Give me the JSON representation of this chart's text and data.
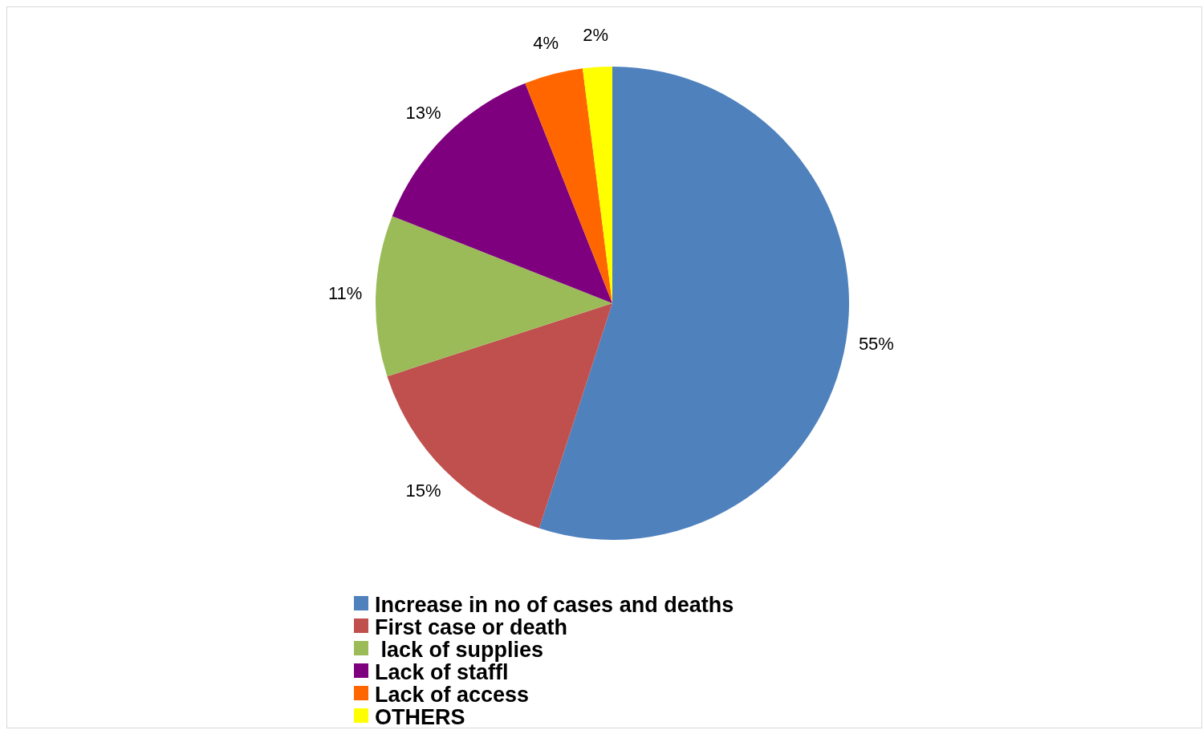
{
  "chart_data": {
    "type": "pie",
    "categories": [
      "Increase in no of cases and deaths",
      "First case or death",
      " lack of supplies",
      "Lack of staffl",
      "Lack of access",
      "OTHERS"
    ],
    "values": [
      55,
      15,
      11,
      13,
      4,
      2
    ],
    "colors": [
      "#4f81bd",
      "#c0504d",
      "#9bbb59",
      "#7f007f",
      "#ff6600",
      "#ffff00"
    ],
    "value_labels": [
      "55%",
      "15%",
      "11%",
      "13%",
      "4%",
      "2%"
    ],
    "legend": "bottom"
  }
}
